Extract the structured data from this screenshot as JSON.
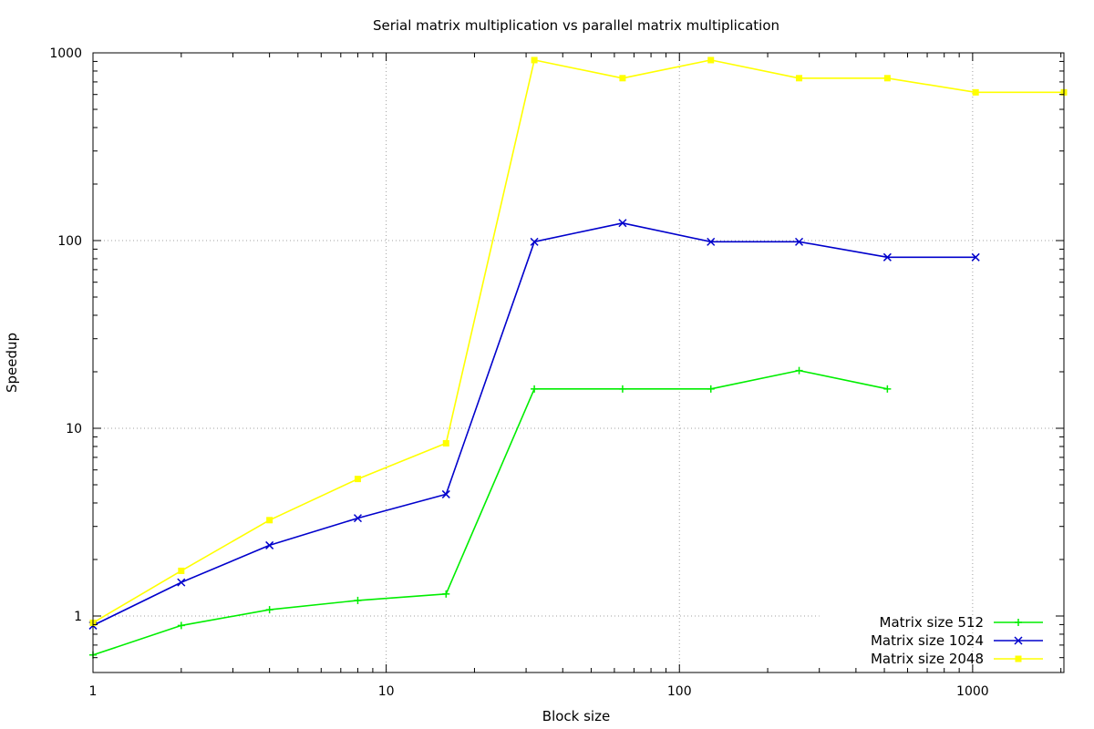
{
  "chart_data": {
    "type": "line",
    "title": "Serial matrix multiplication vs parallel matrix multiplication",
    "xlabel": "Block size",
    "ylabel": "Speedup",
    "xscale": "log",
    "yscale": "log",
    "xlim": [
      1,
      2048
    ],
    "ylim": [
      0.5,
      1000
    ],
    "grid": true,
    "legend_position": "bottom-right",
    "x_ticks": [
      1,
      10,
      100,
      1000
    ],
    "y_ticks": [
      1,
      10,
      100,
      1000
    ],
    "x_tick_labels": [
      "1",
      "10",
      "100",
      "1000"
    ],
    "y_tick_labels": [
      "1",
      "10",
      "100",
      "1000"
    ],
    "series": [
      {
        "name": "Matrix size 512",
        "color": "#00ee00",
        "marker": "plus",
        "x": [
          1,
          2,
          4,
          8,
          16,
          32,
          64,
          128,
          256,
          512
        ],
        "y": [
          0.62,
          0.89,
          1.08,
          1.21,
          1.31,
          16.2,
          16.2,
          16.2,
          20.3,
          16.2
        ]
      },
      {
        "name": "Matrix size 1024",
        "color": "#0000cc",
        "marker": "cross",
        "x": [
          1,
          2,
          4,
          8,
          16,
          32,
          64,
          128,
          256,
          512,
          1024
        ],
        "y": [
          0.89,
          1.51,
          2.38,
          3.32,
          4.45,
          98.5,
          124,
          98.5,
          98.5,
          81.5,
          81.5
        ]
      },
      {
        "name": "Matrix size 2048",
        "color": "#ffff00",
        "marker": "square",
        "x": [
          1,
          2,
          4,
          8,
          16,
          32,
          64,
          128,
          256,
          512,
          1024,
          2048
        ],
        "y": [
          0.92,
          1.74,
          3.24,
          5.37,
          8.32,
          915,
          733,
          915,
          733,
          733,
          616,
          616
        ]
      }
    ]
  }
}
